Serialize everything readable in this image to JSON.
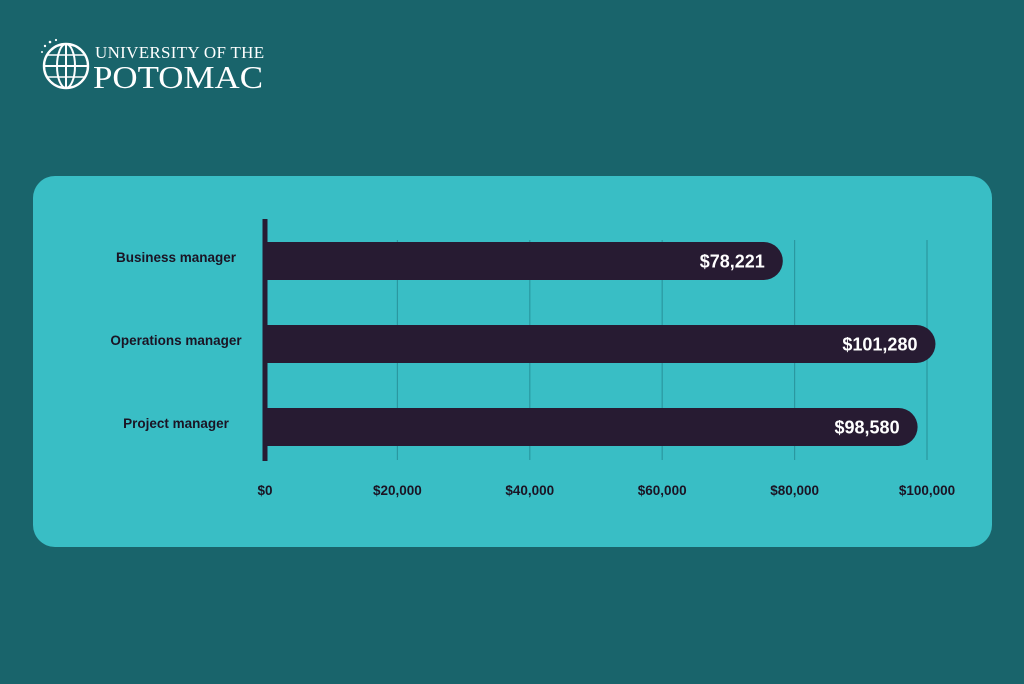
{
  "brand": {
    "line1": "UNIVERSITY OF THE",
    "line2": "POTOMAC"
  },
  "colors": {
    "background": "#19646b",
    "panel": "#39bec5",
    "bar": "#271b32",
    "gridline": "#2a98a0",
    "text_dark": "#1b1424",
    "text_light": "#ffffff"
  },
  "chart_data": {
    "type": "bar",
    "orientation": "horizontal",
    "categories": [
      "Business manager",
      "Operations manager",
      "Project manager"
    ],
    "values": [
      78221,
      101280,
      98580
    ],
    "value_labels": [
      "$78,221",
      "$101,280",
      "$98,580"
    ],
    "x_ticks": [
      0,
      20000,
      40000,
      60000,
      80000,
      100000
    ],
    "x_tick_labels": [
      "$0",
      "$20,000",
      "$40,000",
      "$60,000",
      "$80,000",
      "$100,000"
    ],
    "xlim": [
      0,
      100000
    ],
    "grid": true,
    "title": "",
    "xlabel": "",
    "ylabel": ""
  }
}
